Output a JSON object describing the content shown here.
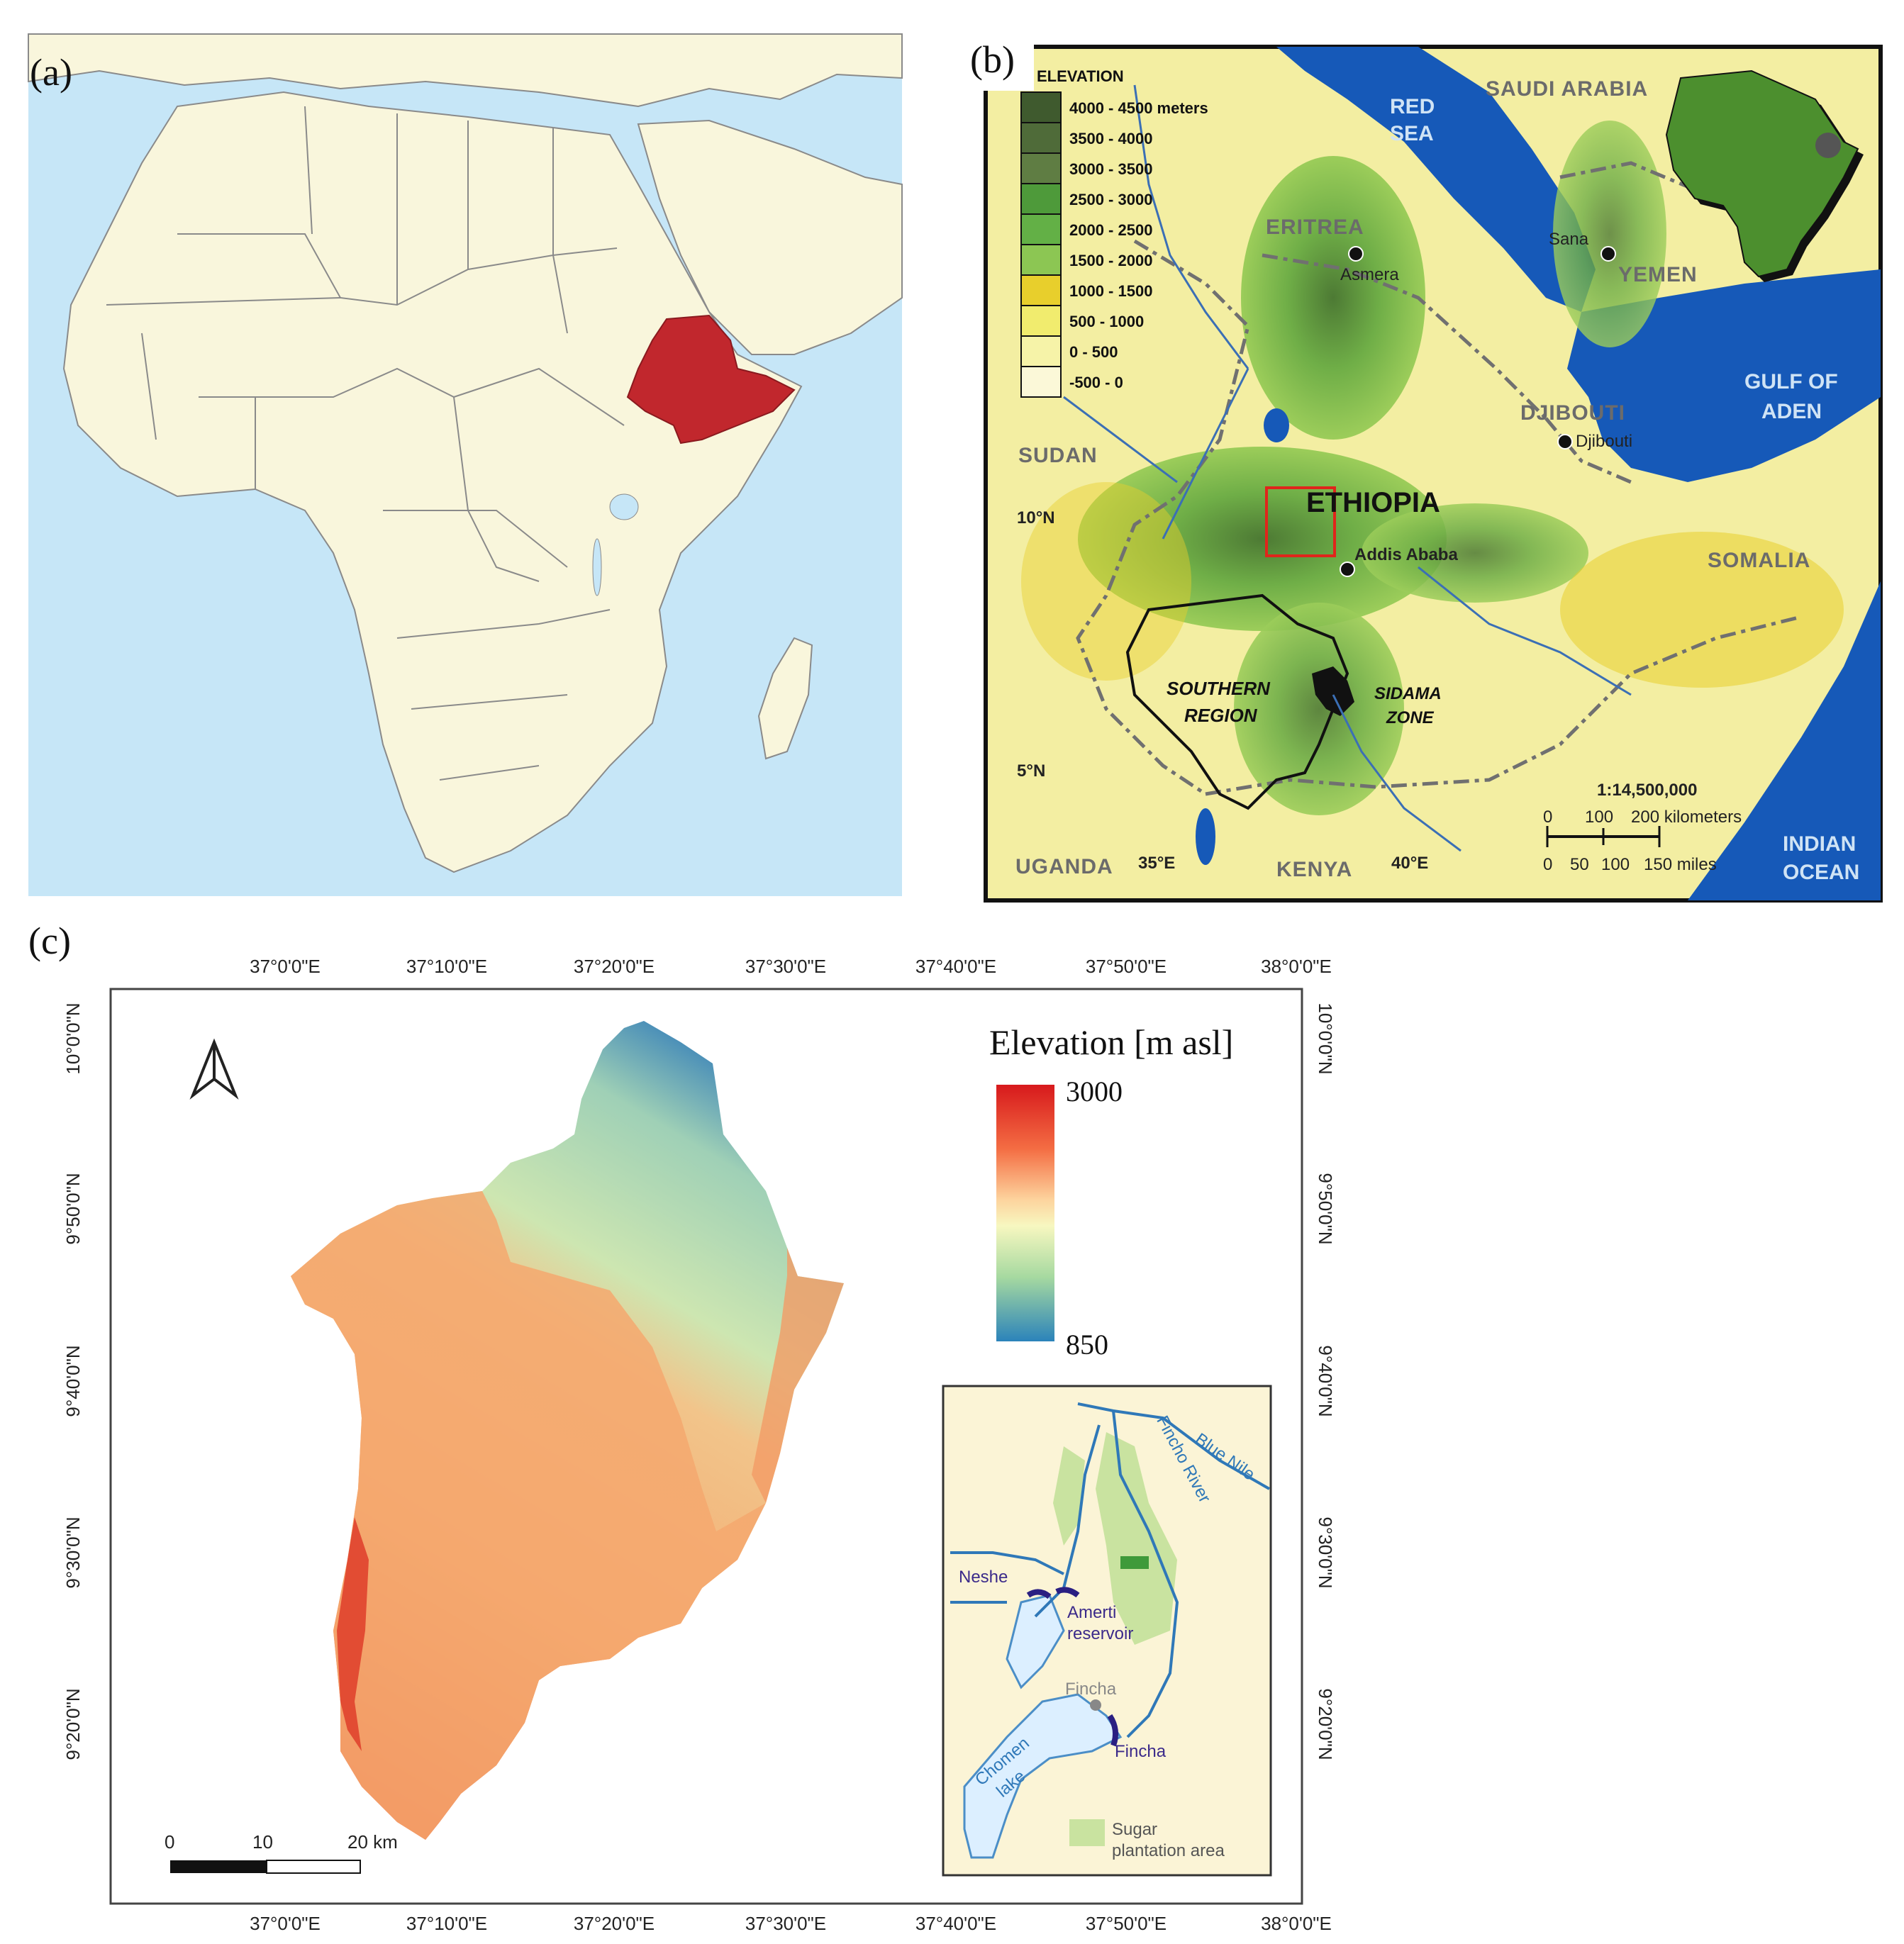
{
  "panels": {
    "a": {
      "label": "(a)"
    },
    "b": {
      "label": "(b)",
      "legend": {
        "title": "ELEVATION",
        "classes": [
          {
            "range": "4000 - 4500 meters",
            "color": "#3f5a2e"
          },
          {
            "range": "3500 - 4000",
            "color": "#4f6b39"
          },
          {
            "range": "3000 - 3500",
            "color": "#5f7d43"
          },
          {
            "range": "2500 - 3000",
            "color": "#4e9a3a"
          },
          {
            "range": "2000 - 2500",
            "color": "#63b046"
          },
          {
            "range": "1500 - 2000",
            "color": "#8cc653"
          },
          {
            "range": "1000 - 1500",
            "color": "#e8cf2c"
          },
          {
            "range": "500 - 1000",
            "color": "#f1ec6e"
          },
          {
            "range": "0 - 500",
            "color": "#f6f3a8"
          },
          {
            "range": "-500 - 0",
            "color": "#fbf8d8"
          }
        ]
      },
      "labels": {
        "red_sea": [
          "RED",
          "SEA"
        ],
        "saudi_arabia": "SAUDI ARABIA",
        "eritrea": "ERITREA",
        "asmera": "Asmera",
        "sana": "Sana",
        "yemen": "YEMEN",
        "gulf_of_aden": [
          "GULF OF",
          "ADEN"
        ],
        "djibouti_country": "DJIBOUTI",
        "djibouti_city": "Djibouti",
        "sudan": "SUDAN",
        "ethiopia": "ETHIOPIA",
        "addis_ababa": "Addis Ababa",
        "somalia": "SOMALIA",
        "southern_region": [
          "SOUTHERN",
          "REGION"
        ],
        "sidama_zone": [
          "SIDAMA",
          "ZONE"
        ],
        "uganda": "UGANDA",
        "kenya": "KENYA",
        "indian_ocean": [
          "INDIAN",
          "OCEAN"
        ],
        "lat_10": "10°N",
        "lat_5": "5°N",
        "lon_35": "35°E",
        "lon_40": "40°E",
        "scale_ratio": "1:14,500,000",
        "scale_km_ticks": [
          "0",
          "100",
          "200 kilometers"
        ],
        "scale_mi_ticks": [
          "0",
          "50",
          "100",
          "150 miles"
        ]
      }
    },
    "c": {
      "label": "(c)",
      "legend_title": "Elevation [m asl]",
      "legend_max": "3000",
      "legend_min": "850",
      "lon_ticks": [
        "37°0'0\"E",
        "37°10'0\"E",
        "37°20'0\"E",
        "37°30'0\"E",
        "37°40'0\"E",
        "37°50'0\"E",
        "38°0'0\"E"
      ],
      "lat_ticks": [
        "10°0'0\"N",
        "9°50'0\"N",
        "9°40'0\"N",
        "9°30'0\"N",
        "9°20'0\"N"
      ],
      "scalebar": [
        "0",
        "10",
        "20 km"
      ],
      "inset": {
        "neshe": "Neshe",
        "amerti": [
          "Amerti",
          "reservoir"
        ],
        "fincha_river": "Fincho River",
        "blue_nile": "Blue Nile",
        "fincha_town": "Fincha",
        "fincha_dam": "Fincha",
        "chomen": [
          "Chomen",
          "lake"
        ],
        "legend_text": [
          "Sugar",
          "plantation area"
        ]
      }
    }
  }
}
